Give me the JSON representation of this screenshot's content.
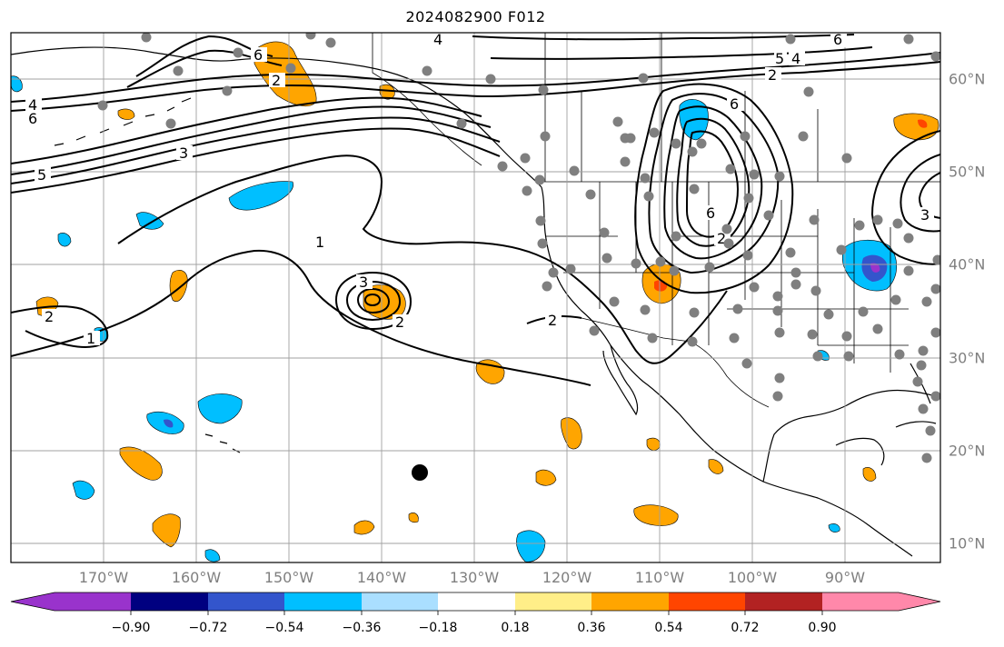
{
  "title": "2024082900 F012",
  "lon_ticks": [
    "170°W",
    "160°W",
    "150°W",
    "140°W",
    "130°W",
    "120°W",
    "110°W",
    "100°W",
    "90°W"
  ],
  "lat_ticks": [
    "60°N",
    "50°N",
    "40°N",
    "30°N",
    "20°N",
    "10°N"
  ],
  "contour_labels": [
    "4",
    "6",
    "3",
    "5",
    "6",
    "4",
    "1",
    "3",
    "2",
    "2",
    "2",
    "1",
    "2",
    "6",
    "6",
    "2",
    "4",
    "5",
    "6",
    "2",
    "3"
  ],
  "colorbar": {
    "ticks": [
      "−0.90",
      "−0.72",
      "−0.54",
      "−0.36",
      "−0.18",
      "0.18",
      "0.36",
      "0.54",
      "0.72",
      "0.90"
    ],
    "colors": [
      "#9933cc",
      "#000080",
      "#3355cc",
      "#00bfff",
      "#aadfff",
      "#ffffff",
      "#ffee88",
      "#ffa500",
      "#ff4500",
      "#b22222",
      "#ff88aa"
    ]
  },
  "colors": {
    "positive": "#ffa500",
    "negative": "#00bfff",
    "strong_negative": "#3355cc",
    "deep_negative": "#9933cc",
    "strong_positive": "#ff4500",
    "station": "#7f7f7f",
    "grid": "#a0a0a0"
  }
}
